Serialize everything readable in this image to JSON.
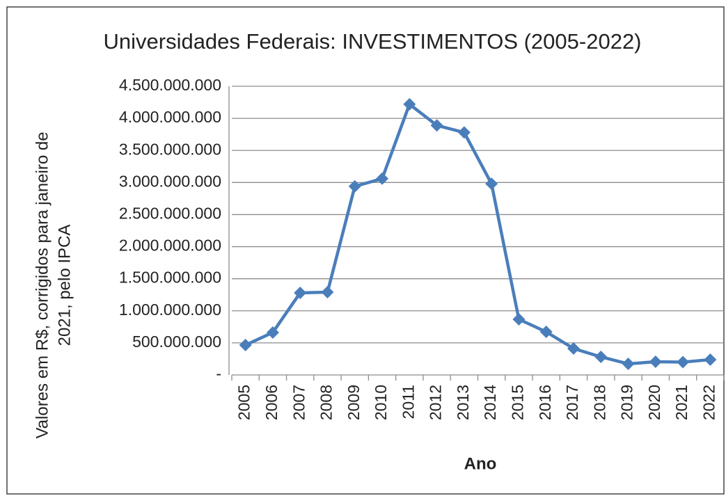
{
  "chart_data": {
    "type": "line",
    "title": "Universidades Federais: INVESTIMENTOS (2005-2022)",
    "x_label": "Ano",
    "y_label": [
      "Valores em R$, corrigidos para janeiro de",
      "2021, pelo IPCA"
    ],
    "categories": [
      "2005",
      "2006",
      "2007",
      "2008",
      "2009",
      "2010",
      "2011",
      "2012",
      "2013",
      "2014",
      "2015",
      "2016",
      "2017",
      "2018",
      "2019",
      "2020",
      "2021",
      "2022"
    ],
    "series": [
      {
        "name": "Investimentos",
        "color": "#4a7ebb",
        "values": [
          466000000,
          662000000,
          1280000000,
          1290000000,
          2940000000,
          3060000000,
          4220000000,
          3890000000,
          3780000000,
          2980000000,
          868000000,
          672000000,
          412000000,
          282000000,
          174000000,
          206000000,
          200000000,
          239000000
        ]
      }
    ],
    "ylim": [
      0,
      4500000000
    ],
    "yticks": [
      {
        "value": 0,
        "label": "-"
      },
      {
        "value": 500000000,
        "label": "500.000.000"
      },
      {
        "value": 1000000000,
        "label": "1.000.000.000"
      },
      {
        "value": 1500000000,
        "label": "1.500.000.000"
      },
      {
        "value": 2000000000,
        "label": "2.000.000.000"
      },
      {
        "value": 2500000000,
        "label": "2.500.000.000"
      },
      {
        "value": 3000000000,
        "label": "3.000.000.000"
      },
      {
        "value": 3500000000,
        "label": "3.500.000.000"
      },
      {
        "value": 4000000000,
        "label": "4.000.000.000"
      },
      {
        "value": 4500000000,
        "label": "4.500.000.000"
      }
    ],
    "grid": true
  }
}
